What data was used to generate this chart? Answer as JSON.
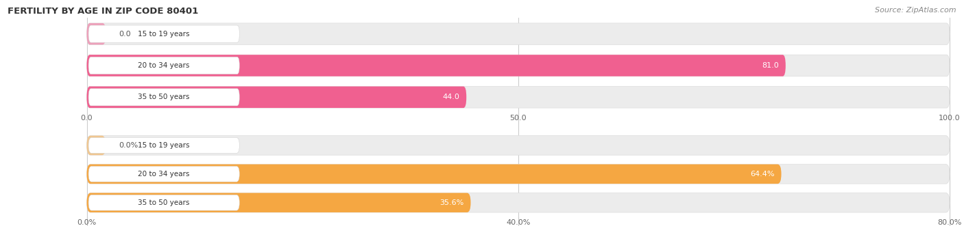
{
  "title": "Female Fertility by Age in Zip Code 80401",
  "title_display": "FERTILITY BY AGE IN ZIP CODE 80401",
  "source": "Source: ZipAtlas.com",
  "top_chart": {
    "categories": [
      "15 to 19 years",
      "20 to 34 years",
      "35 to 50 years"
    ],
    "values": [
      0.0,
      81.0,
      44.0
    ],
    "xlim": [
      0,
      100
    ],
    "xticks": [
      0.0,
      50.0,
      100.0
    ],
    "xtick_labels": [
      "0.0",
      "50.0",
      "100.0"
    ],
    "bar_color": "#f06090",
    "bg_color": "#ececec",
    "label_inside_color": "#ffffff",
    "label_outside_color": "#666666",
    "value_inside_threshold": 10
  },
  "bottom_chart": {
    "categories": [
      "15 to 19 years",
      "20 to 34 years",
      "35 to 50 years"
    ],
    "values": [
      0.0,
      64.4,
      35.6
    ],
    "xlim": [
      0,
      80
    ],
    "xticks": [
      0.0,
      40.0,
      80.0
    ],
    "xtick_labels": [
      "0.0%",
      "40.0%",
      "80.0%"
    ],
    "bar_color": "#f5a742",
    "bg_color": "#ececec",
    "label_inside_color": "#ffffff",
    "label_outside_color": "#666666",
    "value_inside_threshold": 8
  },
  "figsize": [
    14.06,
    3.31
  ],
  "dpi": 100
}
